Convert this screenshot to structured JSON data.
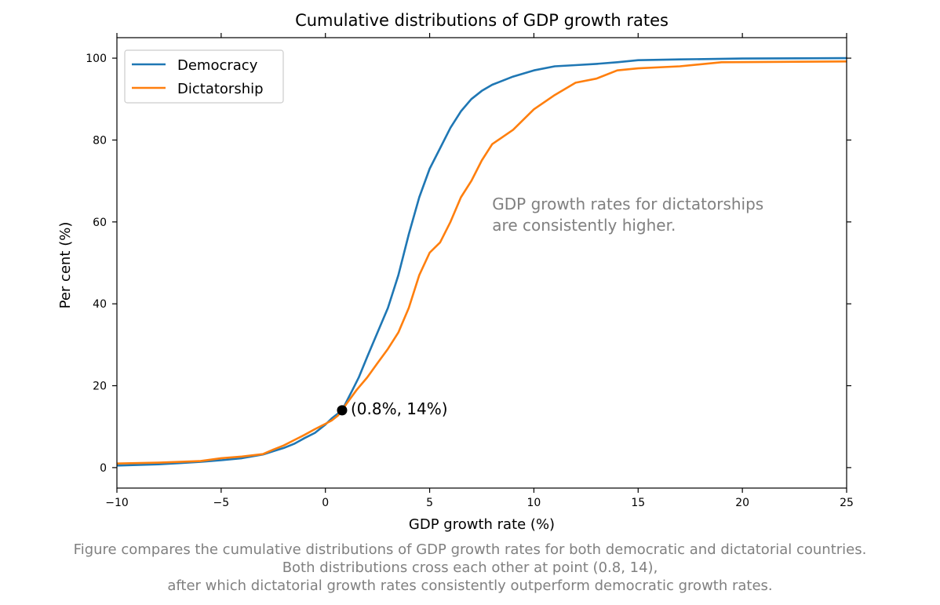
{
  "chart_data": {
    "type": "line",
    "title": "Cumulative distributions of GDP growth rates",
    "xlabel": "GDP growth rate (%)",
    "ylabel": "Per cent (%)",
    "xlim": [
      -10,
      25
    ],
    "ylim": [
      -5,
      105
    ],
    "xticks": [
      -10,
      -5,
      0,
      5,
      10,
      15,
      20,
      25
    ],
    "xtick_labels": [
      "−10",
      "−5",
      "0",
      "5",
      "10",
      "15",
      "20",
      "25"
    ],
    "yticks": [
      0,
      20,
      40,
      60,
      80,
      100
    ],
    "ytick_labels": [
      "0",
      "20",
      "40",
      "60",
      "80",
      "100"
    ],
    "grid": false,
    "legend": "top-left",
    "series": [
      {
        "name": "Democracy",
        "color": "#1f77b4",
        "x": [
          -10,
          -8,
          -7,
          -6,
          -5,
          -4,
          -3,
          -2.5,
          -2,
          -1.5,
          -1,
          -0.5,
          0,
          0.3,
          0.6,
          0.8,
          1,
          1.3,
          1.6,
          2,
          2.5,
          3,
          3.5,
          4,
          4.5,
          5,
          5.5,
          6,
          6.5,
          7,
          7.5,
          8,
          9,
          10,
          11,
          12,
          13,
          14,
          15,
          17,
          20,
          25
        ],
        "y": [
          0.5,
          0.8,
          1.1,
          1.4,
          1.8,
          2.3,
          3.2,
          4,
          4.8,
          5.8,
          7.2,
          8.5,
          10.5,
          12,
          13.2,
          14,
          16,
          19,
          22,
          27,
          33,
          39,
          47,
          57,
          66,
          73,
          78,
          83,
          87,
          90,
          92,
          93.5,
          95.5,
          97,
          98,
          98.3,
          98.6,
          99,
          99.5,
          99.7,
          99.9,
          100
        ]
      },
      {
        "name": "Dictatorship",
        "color": "#ff7f0e",
        "x": [
          -10,
          -8,
          -7,
          -6,
          -5,
          -4,
          -3,
          -2.5,
          -2,
          -1.5,
          -1,
          -0.5,
          0,
          0.3,
          0.6,
          0.8,
          1,
          1.5,
          2,
          2.5,
          3,
          3.5,
          4,
          4.5,
          5,
          5.5,
          6,
          6.5,
          7,
          7.5,
          8,
          9,
          10,
          11,
          12,
          13,
          14,
          15,
          17,
          19,
          22,
          25
        ],
        "y": [
          1,
          1.2,
          1.4,
          1.6,
          2.3,
          2.7,
          3.3,
          4.4,
          5.4,
          6.7,
          8,
          9.4,
          10.7,
          11.5,
          12.7,
          14,
          15.5,
          19,
          22,
          25.5,
          29,
          33,
          39,
          47,
          52.5,
          55,
          60,
          66,
          70,
          75,
          79,
          82.5,
          87.5,
          91,
          94,
          95,
          97,
          97.5,
          98,
          99,
          99.1,
          99.2
        ]
      }
    ],
    "annotations": [
      {
        "text_lines": [
          "GDP growth rates for dictatorships",
          " are consistently higher."
        ],
        "x": 8,
        "y": 63
      },
      {
        "text": "(0.8%, 14%)",
        "x": 0.8,
        "y": 14
      }
    ],
    "caption_lines": [
      "Figure compares the cumulative distributions of GDP growth rates for both democratic and dictatorial countries.",
      "Both distributions cross each other at point (0.8, 14),",
      "after which dictatorial growth rates consistently outperform democratic growth rates."
    ]
  }
}
